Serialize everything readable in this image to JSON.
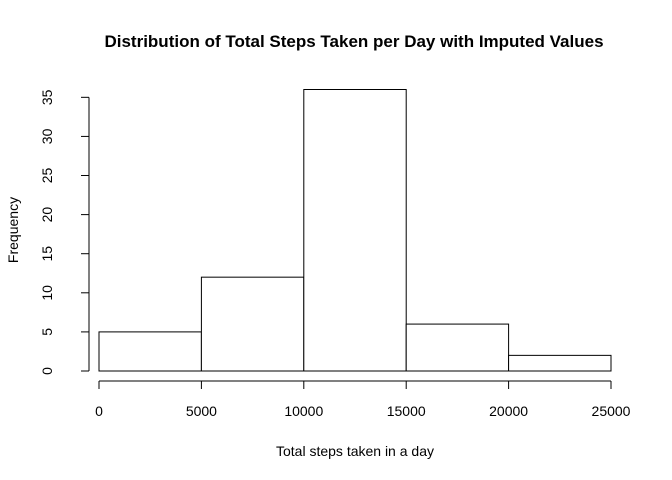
{
  "chart_data": {
    "type": "bar",
    "title": "Distribution of Total Steps Taken per Day with Imputed Values",
    "xlabel": "Total steps taken in a day",
    "ylabel": "Frequency",
    "bins": [
      {
        "from": 0,
        "to": 5000,
        "value": 5
      },
      {
        "from": 5000,
        "to": 10000,
        "value": 12
      },
      {
        "from": 10000,
        "to": 15000,
        "value": 36
      },
      {
        "from": 15000,
        "to": 20000,
        "value": 6
      },
      {
        "from": 20000,
        "to": 25000,
        "value": 2
      }
    ],
    "x_ticks": [
      0,
      5000,
      10000,
      15000,
      20000,
      25000
    ],
    "y_ticks": [
      0,
      5,
      10,
      15,
      20,
      25,
      30,
      35
    ],
    "xlim": [
      0,
      25000
    ],
    "ylim": [
      0,
      36
    ],
    "grid": false,
    "bar_fill": "#ffffff",
    "bar_stroke": "#000000"
  }
}
